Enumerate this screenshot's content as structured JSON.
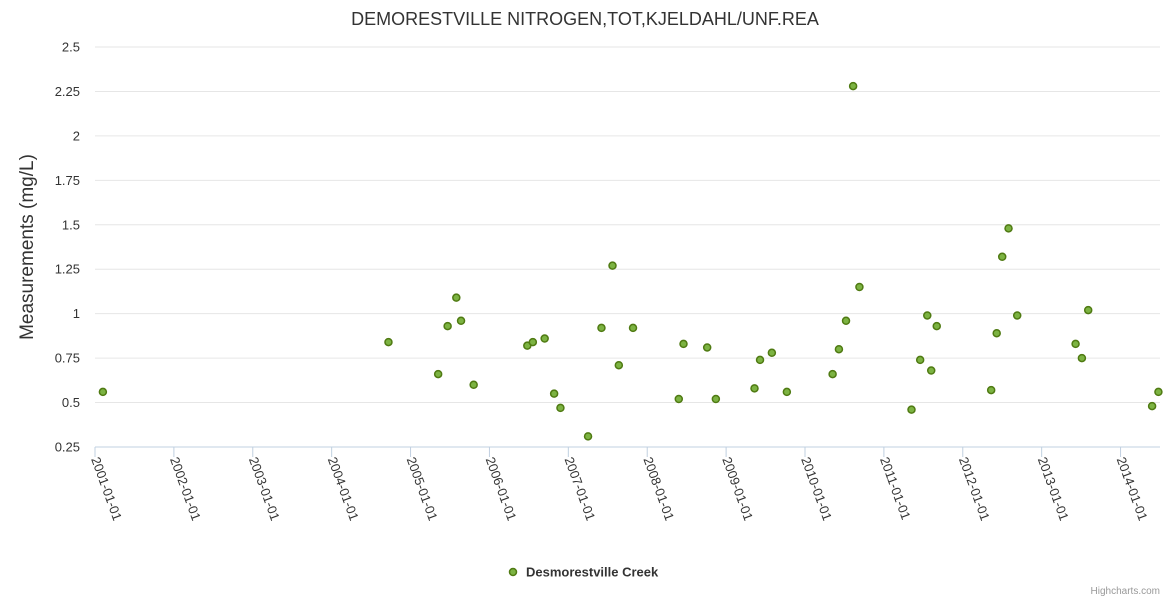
{
  "chart_data": {
    "type": "scatter",
    "title": "DEMORESTVILLE NITROGEN,TOT,KJELDAHL/UNF.REA",
    "ylabel": "Measurements (mg/L)",
    "xlabel": "",
    "ylim": [
      0.25,
      2.5
    ],
    "xlim": [
      2001.0,
      2014.5
    ],
    "yticks": [
      0.25,
      0.5,
      0.75,
      1,
      1.25,
      1.5,
      1.75,
      2,
      2.25,
      2.5
    ],
    "ytick_labels": [
      "0.25",
      "0.5",
      "0.75",
      "1",
      "1.25",
      "1.5",
      "1.75",
      "2",
      "2.25",
      "2.5"
    ],
    "xticks": [
      2001,
      2002,
      2003,
      2004,
      2005,
      2006,
      2007,
      2008,
      2009,
      2010,
      2011,
      2012,
      2013,
      2014
    ],
    "xtick_labels": [
      "2001-01-01",
      "2002-01-01",
      "2003-01-01",
      "2004-01-01",
      "2005-01-01",
      "2006-01-01",
      "2007-01-01",
      "2008-01-01",
      "2009-01-01",
      "2010-01-01",
      "2011-01-01",
      "2012-01-01",
      "2013-01-01",
      "2014-01-01"
    ],
    "grid": true,
    "legend_position": "bottom-center",
    "series": [
      {
        "name": "Desmorestville Creek",
        "color": "#7cb342",
        "x": [
          2001.1,
          2004.72,
          2005.35,
          2005.47,
          2005.58,
          2005.64,
          2005.8,
          2006.48,
          2006.55,
          2006.7,
          2006.82,
          2006.9,
          2007.25,
          2007.42,
          2007.56,
          2007.64,
          2007.82,
          2008.4,
          2008.46,
          2008.76,
          2008.87,
          2009.36,
          2009.43,
          2009.58,
          2009.77,
          2010.35,
          2010.43,
          2010.52,
          2010.61,
          2010.69,
          2011.35,
          2011.46,
          2011.55,
          2011.6,
          2011.67,
          2012.36,
          2012.43,
          2012.5,
          2012.58,
          2012.69,
          2013.43,
          2013.51,
          2013.59,
          2014.4,
          2014.48
        ],
        "values": [
          0.56,
          0.84,
          0.66,
          0.93,
          1.09,
          0.96,
          0.6,
          0.82,
          0.84,
          0.86,
          0.55,
          0.47,
          0.31,
          0.92,
          1.27,
          0.71,
          0.92,
          0.52,
          0.83,
          0.81,
          0.52,
          0.58,
          0.74,
          0.78,
          0.56,
          0.66,
          0.8,
          0.96,
          2.28,
          1.15,
          0.46,
          0.74,
          0.99,
          0.68,
          0.93,
          0.57,
          0.89,
          1.32,
          1.48,
          0.99,
          0.83,
          0.75,
          1.02,
          0.48,
          0.56
        ]
      }
    ]
  },
  "credit": "Highcharts.com"
}
